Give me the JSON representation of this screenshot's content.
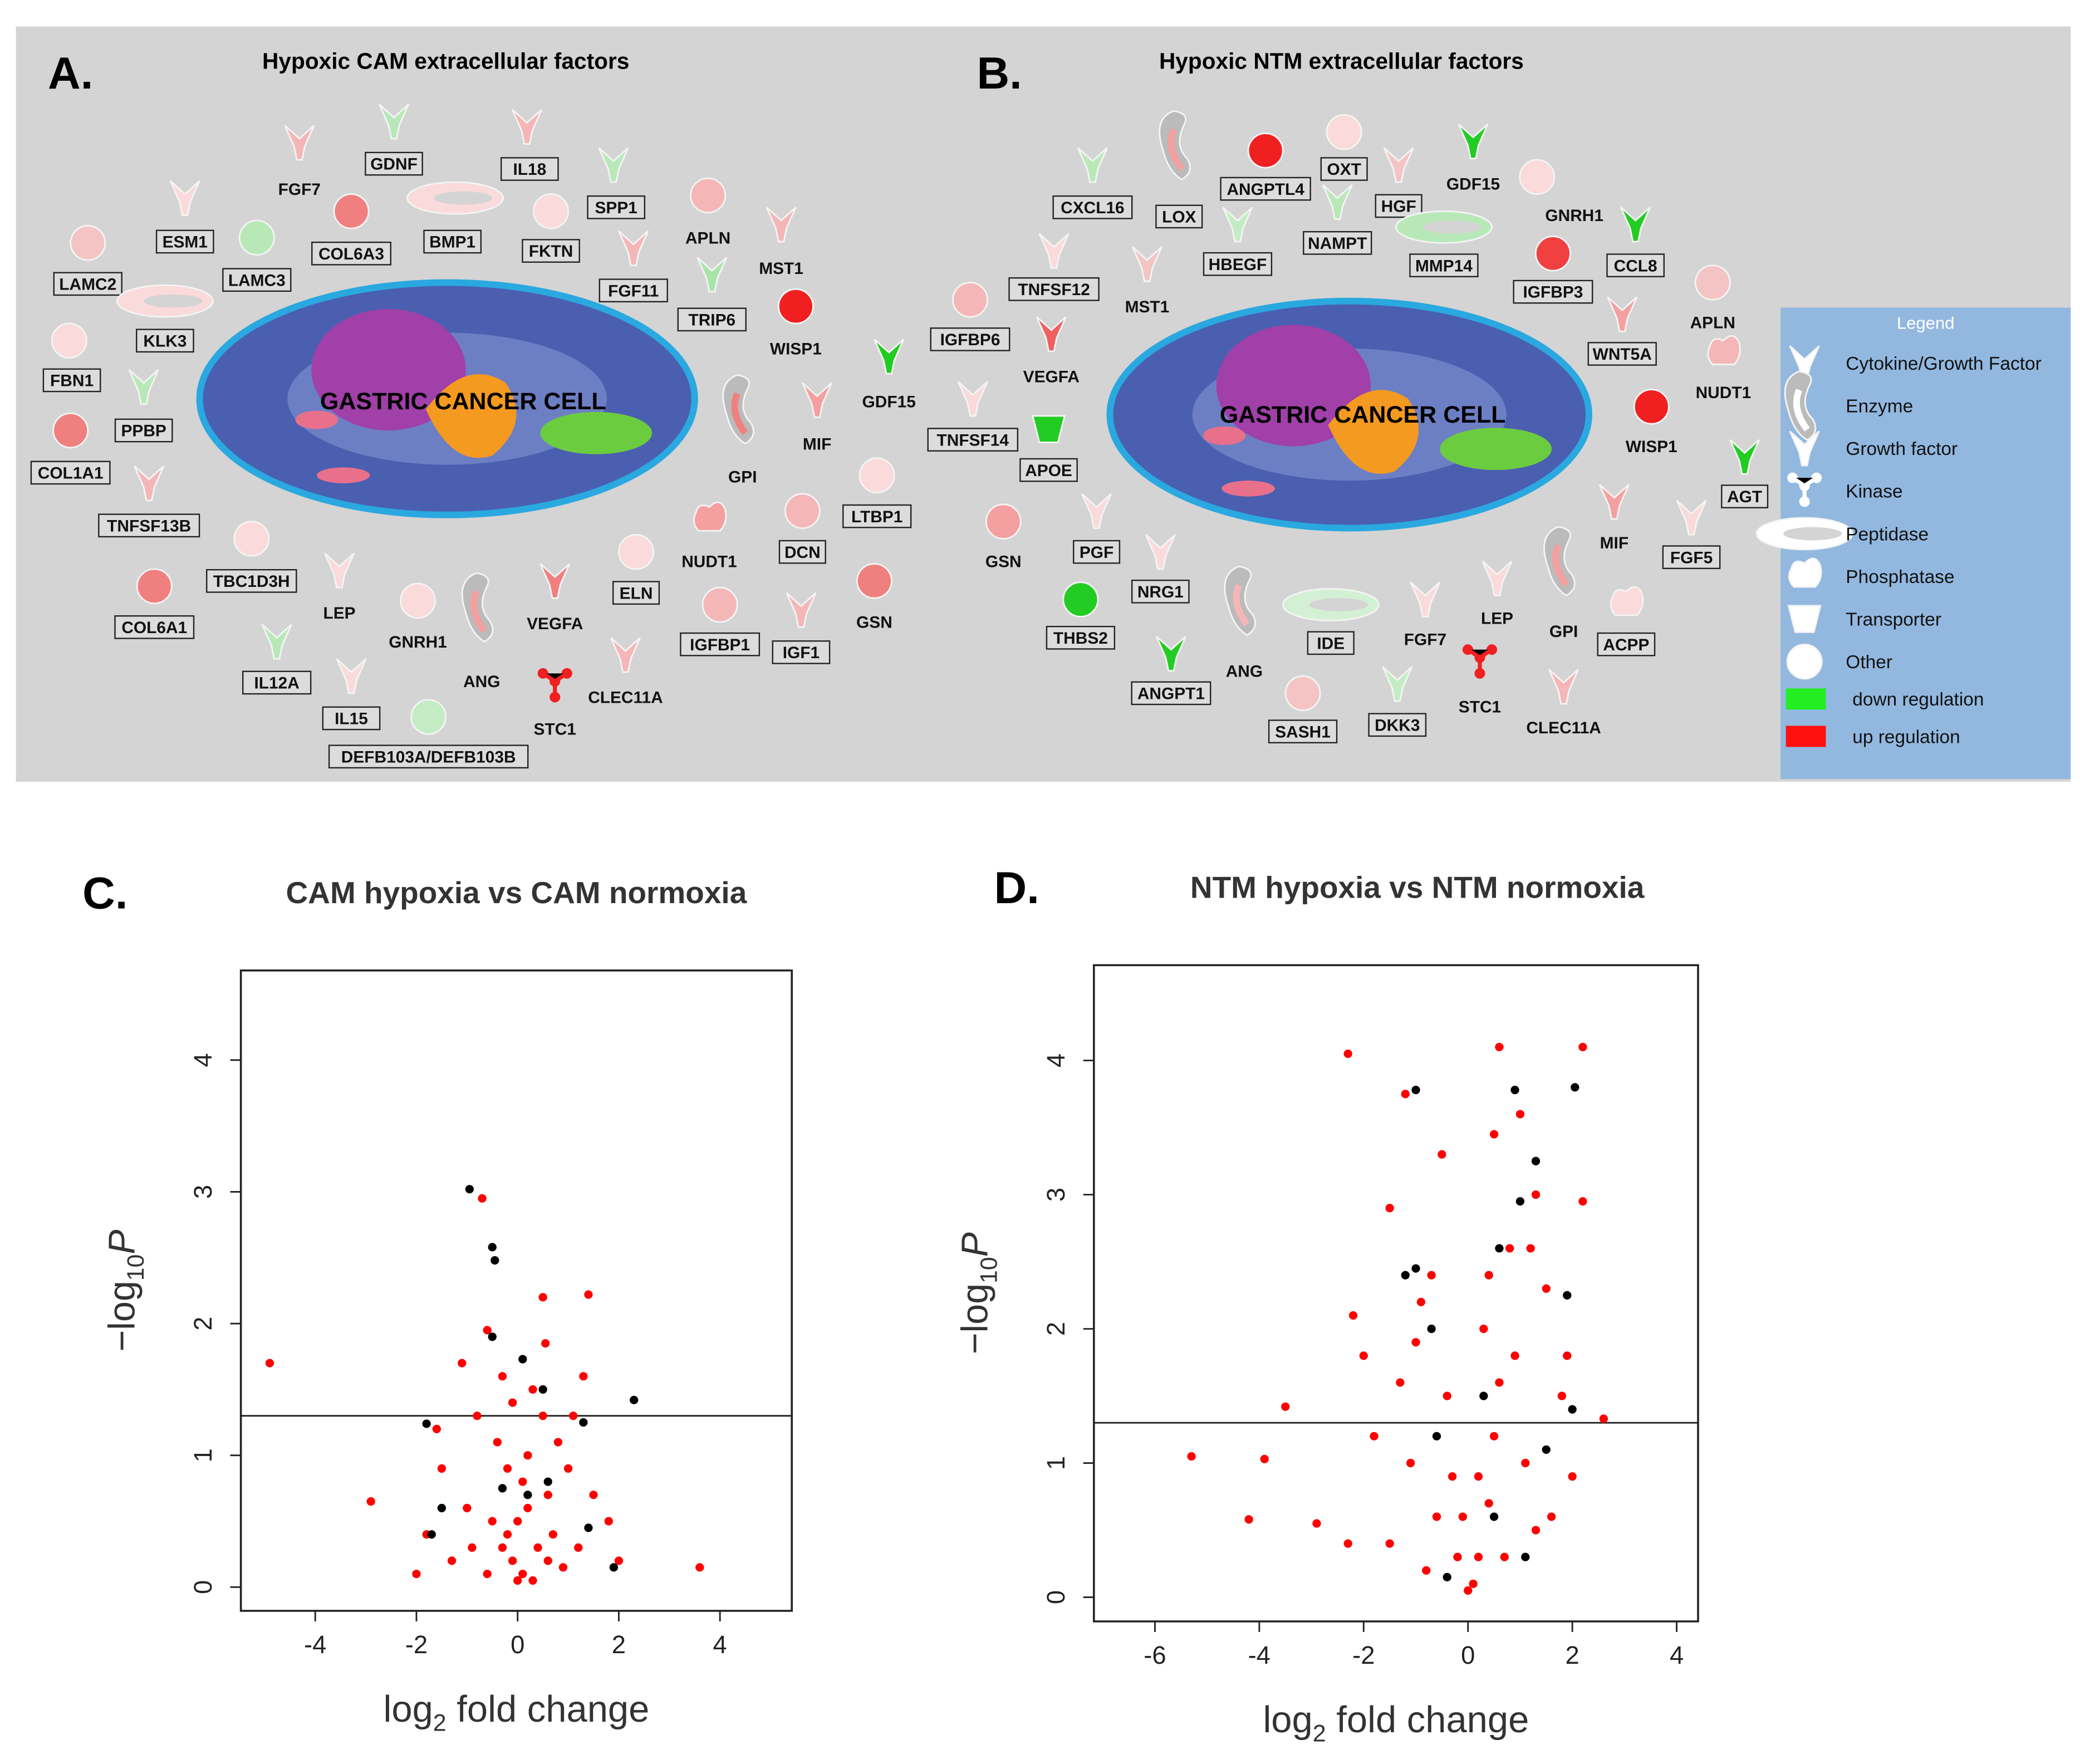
{
  "diagram_a": {
    "letter": "A.",
    "title": "Hypoxic CAM extracellular factors",
    "cell": "GASTRIC CANCER CELL",
    "genes": [
      {
        "label": "FGF7",
        "color": "#f4b6b6"
      },
      {
        "label": "GDNF",
        "color": "#b8e8b8"
      },
      {
        "label": "IL18",
        "color": "#f4b6b6"
      },
      {
        "label": "ESM1",
        "color": "#fadada"
      },
      {
        "label": "COL6A3",
        "color": "#f08080"
      },
      {
        "label": "BMP1",
        "color": "#fadada"
      },
      {
        "label": "FKTN",
        "color": "#fadada"
      },
      {
        "label": "SPP1",
        "color": "#b8e8b8"
      },
      {
        "label": "APLN",
        "color": "#f4b6b6"
      },
      {
        "label": "LAMC3",
        "color": "#b8e8b8"
      },
      {
        "label": "LAMC2",
        "color": "#f4c4c4"
      },
      {
        "label": "KLK3",
        "color": "#fadada"
      },
      {
        "label": "FGF11",
        "color": "#f4b6b6"
      },
      {
        "label": "MST1",
        "color": "#f4b6b6"
      },
      {
        "label": "TRIP6",
        "color": "#a8e4a8"
      },
      {
        "label": "WISP1",
        "color": "#f02020"
      },
      {
        "label": "FBN1",
        "color": "#fadada"
      },
      {
        "label": "PPBP",
        "color": "#b8e8b8"
      },
      {
        "label": "GDF15",
        "color": "#22cc22"
      },
      {
        "label": "COL1A1",
        "color": "#f08080"
      },
      {
        "label": "MIF",
        "color": "#f4a0a0"
      },
      {
        "label": "GPI",
        "color": "#f08080"
      },
      {
        "label": "TNFSF13B",
        "color": "#f4b6b6"
      },
      {
        "label": "LTBP1",
        "color": "#fadada"
      },
      {
        "label": "NUDT1",
        "color": "#f4a0a0"
      },
      {
        "label": "DCN",
        "color": "#f4b6b6"
      },
      {
        "label": "TBC1D3H",
        "color": "#fadada"
      },
      {
        "label": "COL6A1",
        "color": "#f08080"
      },
      {
        "label": "LEP",
        "color": "#fadada"
      },
      {
        "label": "ELN",
        "color": "#fadada"
      },
      {
        "label": "GSN",
        "color": "#f08080"
      },
      {
        "label": "GNRH1",
        "color": "#fadada"
      },
      {
        "label": "VEGFA",
        "color": "#f08080"
      },
      {
        "label": "ANG",
        "color": "#f4a0a0"
      },
      {
        "label": "IGFBP1",
        "color": "#f4b6b6"
      },
      {
        "label": "IGF1",
        "color": "#f4b6b6"
      },
      {
        "label": "IL12A",
        "color": "#b8e8b8"
      },
      {
        "label": "CLEC11A",
        "color": "#f4b6b6"
      },
      {
        "label": "STC1",
        "color": "#f02020"
      },
      {
        "label": "IL15",
        "color": "#fadada"
      },
      {
        "label": "DEFB103A/DEFB103B",
        "color": "#c4ecc4"
      }
    ]
  },
  "diagram_b": {
    "letter": "B.",
    "title": "Hypoxic NTM extracellular factors",
    "cell": "GASTRIC CANCER CELL",
    "genes": [
      {
        "label": "CXCL16",
        "color": "#b8e8b8"
      },
      {
        "label": "LOX",
        "color": "#f4a0a0"
      },
      {
        "label": "ANGPTL4",
        "color": "#f02020"
      },
      {
        "label": "OXT",
        "color": "#fadada"
      },
      {
        "label": "GDF15",
        "color": "#22cc22"
      },
      {
        "label": "HGF",
        "color": "#f4c4c4"
      },
      {
        "label": "GNRH1",
        "color": "#fadada"
      },
      {
        "label": "NAMPT",
        "color": "#b8e8b8"
      },
      {
        "label": "HBEGF",
        "color": "#c4ecc4"
      },
      {
        "label": "MMP14",
        "color": "#b8e8b8"
      },
      {
        "label": "TNFSF12",
        "color": "#fadada"
      },
      {
        "label": "MST1",
        "color": "#f4c4c4"
      },
      {
        "label": "IGFBP3",
        "color": "#f04040"
      },
      {
        "label": "CCL8",
        "color": "#22cc22"
      },
      {
        "label": "APLN",
        "color": "#f4c4c4"
      },
      {
        "label": "IGFBP6",
        "color": "#f4b6b6"
      },
      {
        "label": "VEGFA",
        "color": "#f06060"
      },
      {
        "label": "WNT5A",
        "color": "#f4a0a0"
      },
      {
        "label": "NUDT1",
        "color": "#f4b6b6"
      },
      {
        "label": "TNFSF14",
        "color": "#fadada"
      },
      {
        "label": "APOE",
        "color": "#22cc22"
      },
      {
        "label": "WISP1",
        "color": "#f02020"
      },
      {
        "label": "AGT",
        "color": "#22cc22"
      },
      {
        "label": "GSN",
        "color": "#f4a0a0"
      },
      {
        "label": "PGF",
        "color": "#fadada"
      },
      {
        "label": "MIF",
        "color": "#f4a0a0"
      },
      {
        "label": "FGF5",
        "color": "#fadada"
      },
      {
        "label": "NRG1",
        "color": "#fadada"
      },
      {
        "label": "GPI",
        "color": "#f4a0a0"
      },
      {
        "label": "THBS2",
        "color": "#22cc22"
      },
      {
        "label": "IDE",
        "color": "#d4f0d4"
      },
      {
        "label": "FGF7",
        "color": "#fadada"
      },
      {
        "label": "LEP",
        "color": "#fadada"
      },
      {
        "label": "ACPP",
        "color": "#fadada"
      },
      {
        "label": "ANG",
        "color": "#f4b6b6"
      },
      {
        "label": "ANGPT1",
        "color": "#22cc22"
      },
      {
        "label": "STC1",
        "color": "#f02020"
      },
      {
        "label": "CLEC11A",
        "color": "#f4b6b6"
      },
      {
        "label": "SASH1",
        "color": "#f4c4c4"
      },
      {
        "label": "DKK3",
        "color": "#c4ecc4"
      }
    ]
  },
  "legend": {
    "title": "Legend",
    "items": [
      "Cytokine/Growth Factor",
      "Enzyme",
      "Growth factor",
      "Kinase",
      "Peptidase",
      "Phosphatase",
      "Transporter",
      "Other",
      "down regulation",
      "up regulation"
    ],
    "down_color": "#22ee22",
    "up_color": "#ff1010"
  },
  "chart_data": [
    {
      "type": "scatter",
      "letter": "C.",
      "title": "CAM hypoxia vs CAM normoxia",
      "xlabel": {
        "pre": "log",
        "sub": "2",
        "post": " fold change"
      },
      "ylabel": {
        "pre": "−log",
        "sub": "10",
        "post": "P"
      },
      "xlim": [
        -5.47,
        5.42
      ],
      "ylim": [
        -0.18,
        4.68
      ],
      "xticks": [
        -4,
        -2,
        0,
        2,
        4
      ],
      "yticks": [
        0,
        1,
        2,
        3,
        4
      ],
      "hline": 1.3,
      "series": [
        {
          "color": "#ff0000",
          "x": [
            -4.9,
            -2.9,
            3.6,
            1.4,
            0.5,
            0.55,
            -0.7,
            -0.6,
            -1.1,
            1.1,
            0.3,
            -0.3,
            0.8,
            -1.5,
            -0.2,
            0.2,
            -0.5,
            0.6,
            1.5,
            -1.8,
            -2.0,
            1.2,
            -0.1,
            0.1,
            0,
            -0.3,
            0.4,
            -0.8,
            1.8,
            -1.3,
            0.9,
            -0.6,
            0.3,
            -0.2,
            0.7,
            -1.0,
            1.0,
            -0.4,
            0.5,
            2.0,
            -1.6,
            0.2,
            -0.9,
            1.3,
            0.0,
            0.1,
            -0.1,
            0.6
          ],
          "y": [
            1.7,
            0.65,
            0.15,
            2.22,
            2.2,
            1.85,
            2.95,
            1.95,
            1.7,
            1.3,
            1.5,
            1.6,
            1.1,
            0.9,
            0.9,
            0.6,
            0.5,
            0.7,
            0.7,
            0.4,
            0.1,
            0.3,
            0.2,
            0.1,
            0.05,
            0.3,
            0.3,
            1.3,
            0.5,
            0.2,
            0.15,
            0.1,
            0.05,
            0.4,
            0.4,
            0.6,
            0.9,
            1.1,
            1.3,
            0.2,
            1.2,
            1.0,
            0.3,
            1.6,
            0.5,
            0.8,
            1.4,
            0.2
          ]
        },
        {
          "color": "#000000",
          "x": [
            -0.95,
            -0.5,
            -0.45,
            0.1,
            -0.5,
            2.3,
            -1.8,
            0.5,
            1.3,
            -1.5,
            1.9,
            -1.7,
            0.6,
            -0.3,
            0.2,
            1.4
          ],
          "y": [
            3.02,
            2.58,
            2.48,
            1.73,
            1.9,
            1.42,
            1.24,
            1.5,
            1.25,
            0.6,
            0.15,
            0.4,
            0.8,
            0.75,
            0.7,
            0.45
          ]
        }
      ]
    },
    {
      "type": "scatter",
      "letter": "D.",
      "title": "NTM hypoxia vs NTM normoxia",
      "xlabel": {
        "pre": "log",
        "sub": "2",
        "post": " fold change"
      },
      "ylabel": {
        "pre": "−log",
        "sub": "10",
        "post": "P"
      },
      "xlim": [
        -7.17,
        4.41
      ],
      "ylim": [
        -0.18,
        4.71
      ],
      "xticks": [
        -6,
        -4,
        -2,
        0,
        2,
        4
      ],
      "yticks": [
        0,
        1,
        2,
        3,
        4
      ],
      "hline": 1.3,
      "series": [
        {
          "color": "#ff0000",
          "x": [
            -5.3,
            -4.2,
            -3.9,
            -3.5,
            -2.9,
            -2.3,
            -1.2,
            0.6,
            2.2,
            2.2,
            2.6,
            -2.2,
            -1.5,
            -0.7,
            -1.0,
            0.5,
            1.0,
            1.3,
            0.8,
            1.5,
            -0.5,
            0.3,
            0.9,
            1.8,
            -1.8,
            -1.1,
            -0.4,
            0.5,
            1.1,
            2.0,
            -2.3,
            -1.5,
            -0.6,
            0.4,
            1.3,
            -0.2,
            0.1,
            0,
            0.2,
            -0.3,
            0.7,
            1.6,
            -0.8,
            0.6,
            -1.3,
            1.2,
            0.4,
            -0.9,
            0.2,
            -0.1,
            1.9,
            -2.0
          ],
          "y": [
            1.05,
            0.58,
            1.03,
            1.42,
            0.55,
            4.05,
            3.75,
            4.1,
            4.1,
            2.95,
            1.33,
            2.1,
            2.9,
            2.4,
            1.9,
            3.45,
            3.6,
            3.0,
            2.6,
            2.3,
            3.3,
            2.0,
            1.8,
            1.5,
            1.2,
            1.0,
            1.5,
            1.2,
            1.0,
            0.9,
            0.4,
            0.4,
            0.6,
            0.7,
            0.5,
            0.3,
            0.1,
            0.05,
            0.3,
            0.9,
            0.3,
            0.6,
            0.2,
            1.6,
            1.6,
            2.6,
            2.4,
            2.2,
            0.9,
            0.6,
            1.8,
            1.8
          ]
        },
        {
          "color": "#000000",
          "x": [
            -1.0,
            0.9,
            2.05,
            1.3,
            1.0,
            -1.0,
            -1.2,
            -0.7,
            0.6,
            1.9,
            0.3,
            -0.6,
            1.5,
            2.0,
            -0.4,
            0.5,
            1.1
          ],
          "y": [
            3.78,
            3.78,
            3.8,
            3.25,
            2.95,
            2.45,
            2.4,
            2.0,
            2.6,
            2.25,
            1.5,
            1.2,
            1.1,
            1.4,
            0.15,
            0.6,
            0.3
          ]
        }
      ]
    }
  ]
}
